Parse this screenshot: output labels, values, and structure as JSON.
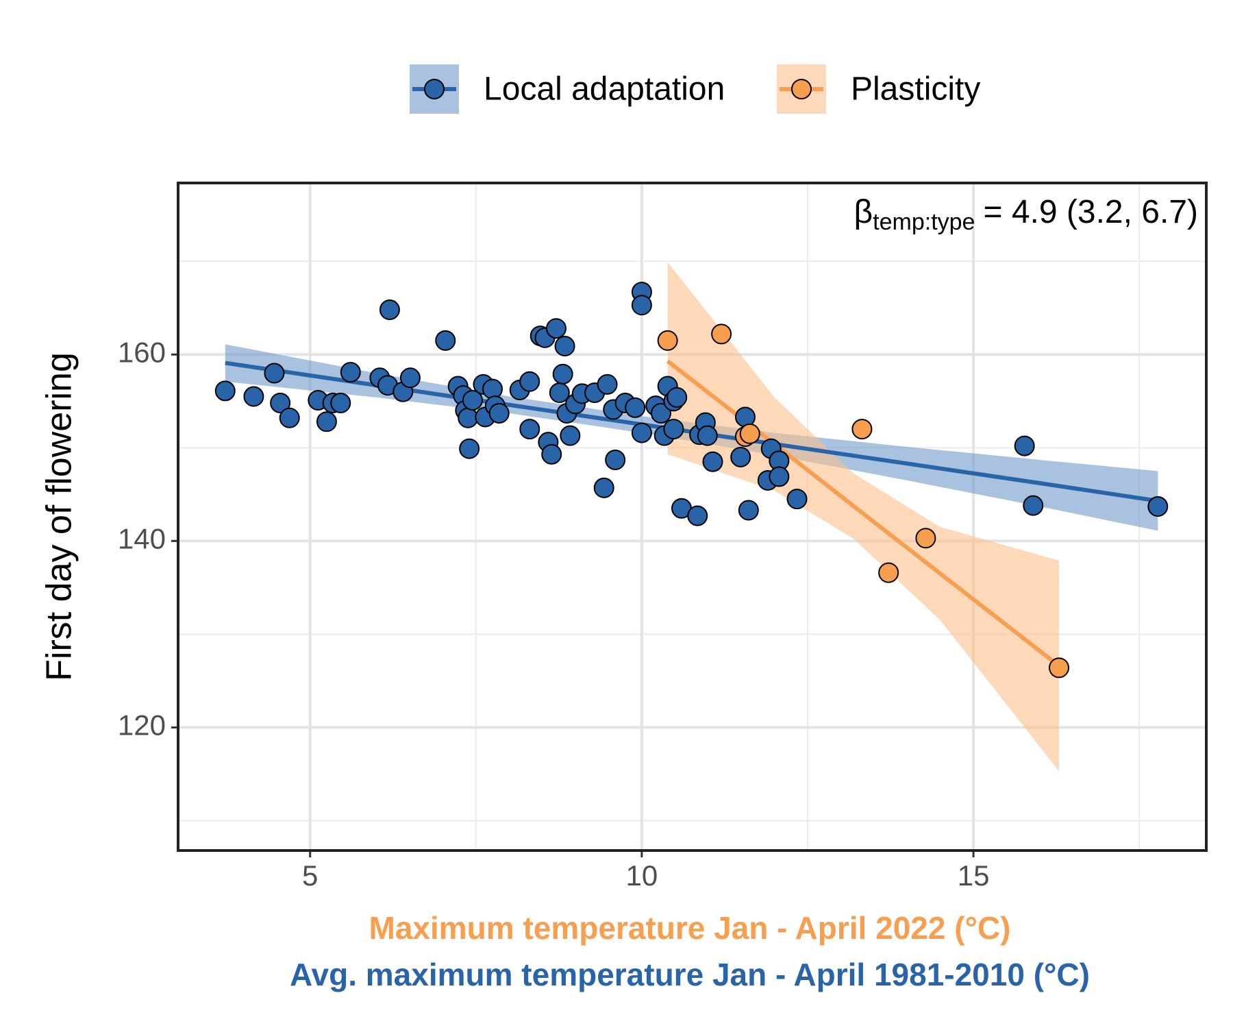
{
  "chart_data": {
    "type": "scatter",
    "legend": "top",
    "grid": true,
    "xlim": [
      3.01,
      18.51
    ],
    "ylim": [
      106.8,
      178.4
    ],
    "xticks": [
      5,
      10,
      15
    ],
    "yticks": [
      120,
      140,
      160
    ],
    "minor_xticks": [
      7.5,
      12.5,
      17.5
    ],
    "minor_yticks": [
      110,
      130,
      150,
      170
    ],
    "xlabels": [
      {
        "text": "Maximum temperature Jan - April 2022 (°C)",
        "color": "#f89e4f"
      },
      {
        "text": "Avg. maximum temperature Jan - April 1981-2010 (°C)",
        "color": "#2a64a8"
      }
    ],
    "ylabel": "First day of flowering",
    "annotation": {
      "symbol": "β",
      "subscript": "temp:type",
      "text": "= 4.9 (3.2, 6.7)"
    },
    "series": [
      {
        "name": "Local adaptation",
        "color": "#2a64a8",
        "band_color": "#6f9acb",
        "x": [
          3.72,
          4.15,
          4.46,
          4.55,
          4.69,
          5.12,
          5.25,
          5.34,
          5.46,
          5.61,
          6.05,
          6.17,
          6.2,
          6.4,
          6.51,
          7.04,
          7.23,
          7.31,
          7.34,
          7.38,
          7.4,
          7.45,
          7.61,
          7.64,
          7.75,
          7.79,
          7.85,
          8.16,
          8.31,
          8.31,
          8.47,
          8.54,
          8.59,
          8.64,
          8.71,
          8.76,
          8.81,
          8.84,
          8.87,
          8.92,
          9.0,
          9.1,
          9.29,
          9.43,
          9.48,
          9.57,
          9.6,
          9.75,
          9.9,
          10.0,
          10.0,
          10.0,
          10.21,
          10.29,
          10.34,
          10.39,
          10.48,
          10.53,
          10.48,
          10.6,
          10.84,
          10.87,
          10.96,
          10.99,
          11.07,
          11.49,
          11.56,
          11.61,
          11.9,
          11.95,
          12.07,
          12.07,
          12.34,
          15.77,
          15.9,
          17.78
        ],
        "values": [
          156.1,
          155.5,
          158.0,
          154.8,
          153.2,
          155.1,
          152.8,
          154.8,
          154.8,
          158.1,
          157.5,
          156.7,
          164.8,
          156.0,
          157.5,
          161.5,
          156.6,
          155.6,
          154.0,
          153.2,
          149.9,
          155.1,
          156.8,
          153.3,
          156.3,
          154.5,
          153.7,
          156.2,
          157.1,
          152.0,
          162.0,
          161.8,
          150.6,
          149.3,
          162.8,
          155.9,
          157.9,
          160.9,
          153.7,
          151.3,
          154.7,
          155.8,
          155.9,
          145.7,
          156.8,
          154.1,
          148.7,
          154.8,
          154.3,
          166.7,
          165.3,
          151.6,
          154.5,
          153.7,
          151.3,
          156.6,
          155.0,
          155.4,
          152.0,
          143.5,
          142.7,
          151.4,
          152.7,
          151.3,
          148.5,
          149.0,
          153.3,
          143.3,
          146.5,
          149.9,
          148.6,
          146.9,
          144.5,
          150.2,
          143.8,
          143.7
        ],
        "fit": {
          "x": [
            3.72,
            6,
            8,
            10,
            12,
            14,
            16,
            17.78
          ],
          "values": [
            159.1,
            156.7,
            154.6,
            152.5,
            150.4,
            148.3,
            146.2,
            144.3
          ],
          "lower": [
            157.1,
            155.4,
            153.7,
            151.6,
            149.2,
            146.5,
            143.7,
            141.1
          ],
          "upper": [
            161.1,
            158.0,
            155.5,
            153.4,
            151.6,
            150.1,
            148.7,
            147.5
          ]
        }
      },
      {
        "name": "Plasticity",
        "color": "#f89e4f",
        "band_color": "#fbbf8a",
        "x": [
          10.39,
          11.2,
          11.56,
          11.63,
          13.32,
          13.72,
          14.28,
          16.29
        ],
        "values": [
          161.5,
          162.2,
          151.2,
          151.5,
          152.0,
          136.6,
          140.3,
          126.4
        ],
        "fit": {
          "x": [
            10.39,
            12,
            13.2,
            14.5,
            16.29
          ],
          "values": [
            159.3,
            150.4,
            143.7,
            136.5,
            126.6
          ],
          "lower": [
            149.3,
            145.4,
            140.2,
            131.5,
            115.3
          ],
          "upper": [
            169.9,
            155.4,
            147.2,
            141.5,
            137.9
          ]
        }
      }
    ]
  }
}
